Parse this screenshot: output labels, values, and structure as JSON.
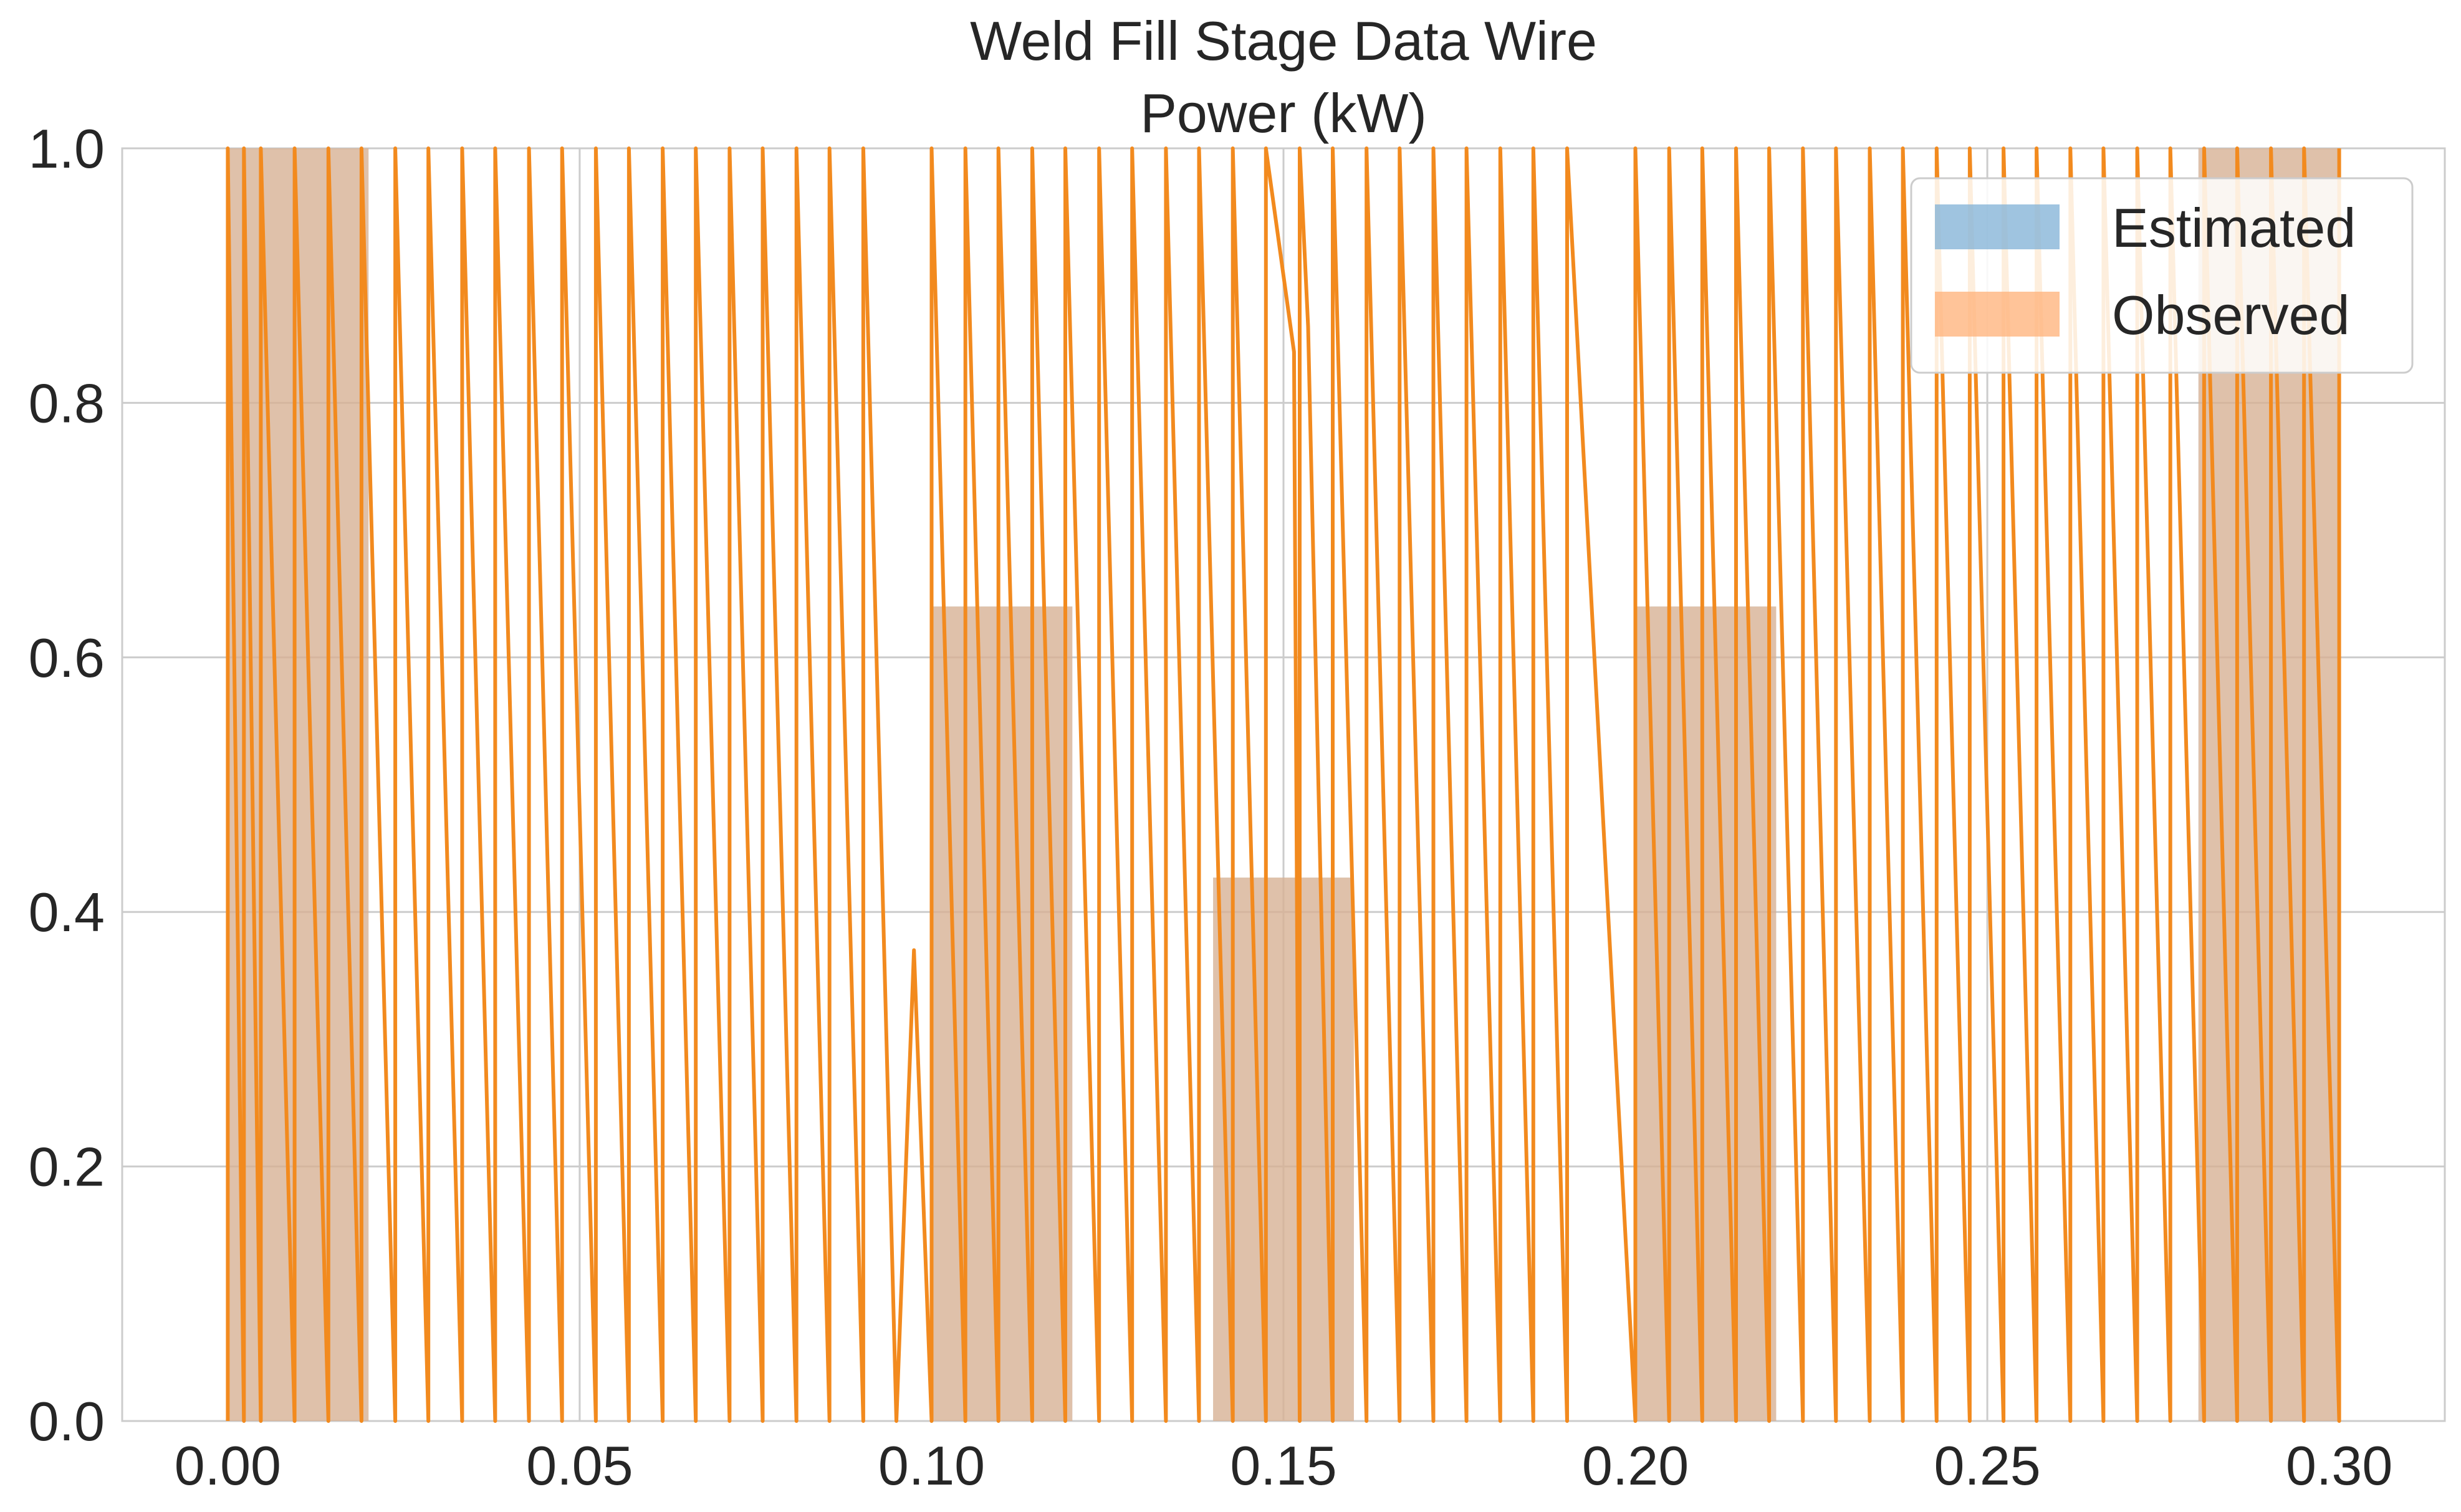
{
  "chart_data": {
    "type": "bar",
    "title": "Weld Fill Stage Data Wire",
    "subtitle": "Power (kW)",
    "xlim": [
      -0.015,
      0.315
    ],
    "ylim": [
      0,
      1.0
    ],
    "x_ticks": [
      "0.00",
      "0.05",
      "0.10",
      "0.15",
      "0.20",
      "0.25",
      "0.30"
    ],
    "y_ticks": [
      "0.0",
      "0.2",
      "0.4",
      "0.6",
      "0.8",
      "1.0"
    ],
    "grid": true,
    "legend_placement": "top-right",
    "bin_width": 0.02,
    "series": [
      {
        "name": "Estimated",
        "color": "#7fb0d6",
        "bins": [
          {
            "x0": 0.0,
            "x1": 0.02,
            "value": 1.0
          },
          {
            "x0": 0.1,
            "x1": 0.12,
            "value": 0.64
          },
          {
            "x0": 0.14,
            "x1": 0.16,
            "value": 0.427
          },
          {
            "x0": 0.2,
            "x1": 0.22,
            "value": 0.64
          },
          {
            "x0": 0.28,
            "x1": 0.3,
            "value": 1.0
          }
        ]
      },
      {
        "name": "Observed",
        "color": "#ffb077",
        "bins": [
          {
            "x0": 0.0,
            "x1": 0.02,
            "value": 1.0
          },
          {
            "x0": 0.1,
            "x1": 0.12,
            "value": 0.64
          },
          {
            "x0": 0.14,
            "x1": 0.16,
            "value": 0.427
          },
          {
            "x0": 0.2,
            "x1": 0.22,
            "value": 0.64
          },
          {
            "x0": 0.28,
            "x1": 0.3,
            "value": 1.0
          }
        ]
      }
    ],
    "line": {
      "color": "#f28a1e",
      "pulse_x": [
        0.0,
        0.0023,
        0.0047,
        0.0095,
        0.0143,
        0.019,
        0.0238,
        0.0285,
        0.0333,
        0.038,
        0.0428,
        0.0475,
        0.0523,
        0.057,
        0.0618,
        0.0665,
        0.0713,
        0.076,
        0.0808,
        0.0855,
        0.0903,
        0.1,
        0.1048,
        0.1095,
        0.1143,
        0.119,
        0.1238,
        0.1285,
        0.1333,
        0.138,
        0.1428,
        0.1475,
        0.1523,
        0.157,
        0.1618,
        0.1665,
        0.1713,
        0.176,
        0.1808,
        0.1855,
        0.1903,
        0.2,
        0.2048,
        0.2095,
        0.2143,
        0.219,
        0.2238,
        0.2285,
        0.2333,
        0.238,
        0.2428,
        0.2475,
        0.2523,
        0.257,
        0.2618,
        0.2665,
        0.2713,
        0.276,
        0.2808,
        0.2855,
        0.2903,
        0.295,
        0.3
      ],
      "special": [
        {
          "x": 0.095,
          "y": 0.0
        },
        {
          "x": 0.0975,
          "y": 0.37
        },
        {
          "x": 0.1515,
          "y": 0.84
        },
        {
          "x": 0.1535,
          "y": 0.86
        }
      ]
    }
  }
}
